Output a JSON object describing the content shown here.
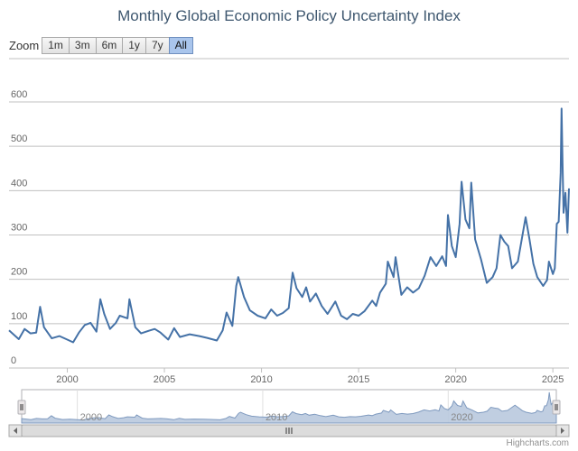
{
  "title": "Monthly Global Economic Policy Uncertainty Index",
  "zoom": {
    "label": "Zoom",
    "buttons": [
      {
        "label": "1m",
        "active": false
      },
      {
        "label": "3m",
        "active": false
      },
      {
        "label": "6m",
        "active": false
      },
      {
        "label": "1y",
        "active": false
      },
      {
        "label": "7y",
        "active": false
      },
      {
        "label": "All",
        "active": true
      }
    ]
  },
  "credits": "Highcharts.com",
  "colors": {
    "line": "#4572a7",
    "grid": "#c0c0c0",
    "nav_fill": "#b9c9de",
    "nav_line": "#7f9abf"
  },
  "chart_data": {
    "type": "line",
    "title": "Monthly Global Economic Policy Uncertainty Index",
    "xlabel": "",
    "ylabel": "",
    "x_range": [
      1997.0,
      2025.83
    ],
    "ylim": [
      0,
      600
    ],
    "y_ticks": [
      0,
      100,
      200,
      300,
      400,
      500,
      600
    ],
    "x_ticks": [
      2000,
      2005,
      2010,
      2015,
      2020,
      2025
    ],
    "navigator_ticks": [
      2000,
      2010,
      2020
    ],
    "grid": true,
    "series": [
      {
        "points": [
          [
            1997.0,
            85
          ],
          [
            1997.5,
            65
          ],
          [
            1997.8,
            88
          ],
          [
            1998.1,
            78
          ],
          [
            1998.4,
            80
          ],
          [
            1998.6,
            138
          ],
          [
            1998.8,
            92
          ],
          [
            1999.2,
            67
          ],
          [
            1999.6,
            72
          ],
          [
            2000.0,
            64
          ],
          [
            2000.3,
            58
          ],
          [
            2000.6,
            80
          ],
          [
            2000.9,
            97
          ],
          [
            2001.2,
            102
          ],
          [
            2001.5,
            82
          ],
          [
            2001.7,
            155
          ],
          [
            2001.9,
            122
          ],
          [
            2002.2,
            88
          ],
          [
            2002.5,
            102
          ],
          [
            2002.7,
            118
          ],
          [
            2003.1,
            112
          ],
          [
            2003.2,
            155
          ],
          [
            2003.5,
            92
          ],
          [
            2003.8,
            78
          ],
          [
            2004.2,
            84
          ],
          [
            2004.5,
            88
          ],
          [
            2004.8,
            80
          ],
          [
            2005.2,
            64
          ],
          [
            2005.5,
            90
          ],
          [
            2005.8,
            70
          ],
          [
            2006.3,
            76
          ],
          [
            2006.8,
            72
          ],
          [
            2007.2,
            68
          ],
          [
            2007.7,
            62
          ],
          [
            2008.0,
            85
          ],
          [
            2008.2,
            125
          ],
          [
            2008.5,
            95
          ],
          [
            2008.7,
            185
          ],
          [
            2008.8,
            205
          ],
          [
            2009.1,
            160
          ],
          [
            2009.4,
            130
          ],
          [
            2009.8,
            118
          ],
          [
            2010.2,
            112
          ],
          [
            2010.5,
            132
          ],
          [
            2010.8,
            118
          ],
          [
            2011.1,
            124
          ],
          [
            2011.4,
            135
          ],
          [
            2011.6,
            215
          ],
          [
            2011.8,
            180
          ],
          [
            2012.1,
            160
          ],
          [
            2012.3,
            182
          ],
          [
            2012.5,
            150
          ],
          [
            2012.8,
            168
          ],
          [
            2013.1,
            140
          ],
          [
            2013.4,
            122
          ],
          [
            2013.8,
            150
          ],
          [
            2014.1,
            118
          ],
          [
            2014.4,
            110
          ],
          [
            2014.7,
            122
          ],
          [
            2015.0,
            118
          ],
          [
            2015.3,
            128
          ],
          [
            2015.7,
            152
          ],
          [
            2015.9,
            140
          ],
          [
            2016.1,
            170
          ],
          [
            2016.4,
            190
          ],
          [
            2016.5,
            240
          ],
          [
            2016.8,
            205
          ],
          [
            2016.9,
            250
          ],
          [
            2017.2,
            165
          ],
          [
            2017.5,
            182
          ],
          [
            2017.8,
            170
          ],
          [
            2018.1,
            180
          ],
          [
            2018.4,
            208
          ],
          [
            2018.7,
            250
          ],
          [
            2019.0,
            230
          ],
          [
            2019.3,
            252
          ],
          [
            2019.5,
            230
          ],
          [
            2019.6,
            345
          ],
          [
            2019.8,
            275
          ],
          [
            2020.0,
            250
          ],
          [
            2020.2,
            325
          ],
          [
            2020.3,
            420
          ],
          [
            2020.5,
            335
          ],
          [
            2020.7,
            315
          ],
          [
            2020.8,
            418
          ],
          [
            2021.0,
            290
          ],
          [
            2021.3,
            245
          ],
          [
            2021.6,
            192
          ],
          [
            2021.9,
            205
          ],
          [
            2022.1,
            225
          ],
          [
            2022.3,
            300
          ],
          [
            2022.5,
            285
          ],
          [
            2022.7,
            275
          ],
          [
            2022.9,
            225
          ],
          [
            2023.2,
            240
          ],
          [
            2023.4,
            290
          ],
          [
            2023.6,
            340
          ],
          [
            2023.8,
            290
          ],
          [
            2024.0,
            235
          ],
          [
            2024.2,
            205
          ],
          [
            2024.5,
            185
          ],
          [
            2024.7,
            198
          ],
          [
            2024.8,
            240
          ],
          [
            2025.0,
            212
          ],
          [
            2025.1,
            225
          ],
          [
            2025.2,
            325
          ],
          [
            2025.3,
            330
          ],
          [
            2025.4,
            440
          ],
          [
            2025.45,
            585
          ],
          [
            2025.5,
            460
          ],
          [
            2025.55,
            350
          ],
          [
            2025.65,
            395
          ],
          [
            2025.75,
            305
          ],
          [
            2025.83,
            405
          ]
        ]
      }
    ]
  }
}
